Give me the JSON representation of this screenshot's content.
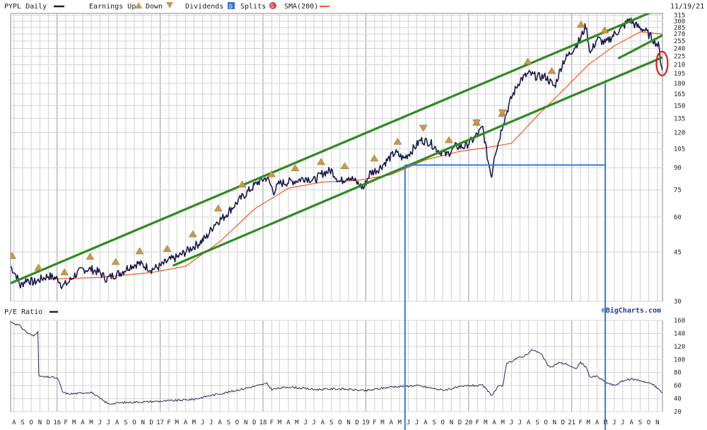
{
  "header": {
    "symbol_label": "PYPL Daily",
    "earnings_up_label": "Earnings Up",
    "earnings_down_label": "Down",
    "dividends_label": "Dividends",
    "dividend_icon": "D",
    "splits_label": "Splits",
    "split_icon": "S",
    "sma_label": "SMA(200)",
    "date": "11/19/21"
  },
  "colors": {
    "price": "#1b1b4d",
    "sma": "#f05a1e",
    "channel": "#2e8b22",
    "blue_line": "#2f7fd6",
    "earnings": "#c89a4c",
    "circle": "#e01a1a",
    "dividend": "#3a6fd8",
    "split": "#d94a4a"
  },
  "watermark": "©BigCharts.com",
  "pe_label": "P/E Ratio",
  "chart_data": [
    {
      "type": "line",
      "title": "PYPL Daily",
      "scale": "log",
      "grid": true,
      "x_range": [
        "2015-07-20",
        "2021-11-19"
      ],
      "ylim": [
        30,
        320
      ],
      "y_ticks": [
        30,
        45,
        60,
        75,
        90,
        105,
        120,
        135,
        150,
        165,
        180,
        195,
        210,
        225,
        240,
        255,
        270,
        285,
        300,
        315
      ],
      "x_tick_labels": [
        "A",
        "S",
        "O",
        "N",
        "D",
        "16",
        "F",
        "M",
        "A",
        "M",
        "J",
        "J",
        "A",
        "S",
        "O",
        "N",
        "D",
        "17",
        "F",
        "M",
        "A",
        "M",
        "J",
        "J",
        "A",
        "S",
        "O",
        "N",
        "D",
        "18",
        "F",
        "M",
        "A",
        "M",
        "J",
        "J",
        "A",
        "S",
        "O",
        "N",
        "D",
        "19",
        "F",
        "M",
        "A",
        "M",
        "J",
        "J",
        "A",
        "S",
        "O",
        "N",
        "D",
        "20",
        "F",
        "M",
        "A",
        "M",
        "J",
        "J",
        "A",
        "S",
        "O",
        "N",
        "D",
        "21",
        "F",
        "M",
        "A",
        "M",
        "J",
        "J",
        "A",
        "S",
        "O",
        "N"
      ],
      "series": [
        {
          "name": "PYPL Daily",
          "x": [
            "2015-07-20",
            "2015-08-10",
            "2015-08-24",
            "2015-09-15",
            "2015-10-10",
            "2015-11-05",
            "2015-12-01",
            "2016-01-05",
            "2016-01-20",
            "2016-02-10",
            "2016-03-01",
            "2016-04-01",
            "2016-05-01",
            "2016-06-01",
            "2016-06-24",
            "2016-07-15",
            "2016-08-15",
            "2016-09-15",
            "2016-10-15",
            "2016-11-10",
            "2016-12-01",
            "2017-01-01",
            "2017-02-01",
            "2017-03-01",
            "2017-04-01",
            "2017-04-28",
            "2017-05-15",
            "2017-06-15",
            "2017-07-15",
            "2017-08-15",
            "2017-09-15",
            "2017-10-15",
            "2017-11-15",
            "2017-12-15",
            "2018-01-15",
            "2018-02-08",
            "2018-03-01",
            "2018-04-01",
            "2018-05-01",
            "2018-06-01",
            "2018-07-01",
            "2018-08-01",
            "2018-09-01",
            "2018-10-01",
            "2018-11-01",
            "2018-12-24",
            "2019-01-15",
            "2019-02-15",
            "2019-03-15",
            "2019-04-15",
            "2019-05-15",
            "2019-06-15",
            "2019-07-15",
            "2019-08-15",
            "2019-09-15",
            "2019-10-15",
            "2019-11-15",
            "2019-12-15",
            "2020-01-15",
            "2020-02-20",
            "2020-03-10",
            "2020-03-23",
            "2020-04-01",
            "2020-04-15",
            "2020-05-01",
            "2020-06-01",
            "2020-07-01",
            "2020-08-01",
            "2020-09-01",
            "2020-10-01",
            "2020-11-01",
            "2020-12-01",
            "2021-01-01",
            "2021-02-01",
            "2021-02-20",
            "2021-03-08",
            "2021-04-01",
            "2021-05-01",
            "2021-06-01",
            "2021-07-01",
            "2021-07-24",
            "2021-08-15",
            "2021-09-15",
            "2021-10-15",
            "2021-11-05",
            "2021-11-12",
            "2021-11-19"
          ],
          "values": [
            40,
            37,
            34,
            36,
            35,
            36,
            37,
            36,
            34,
            35,
            37,
            39,
            39,
            38,
            36,
            37,
            38,
            40,
            41,
            40,
            39,
            40,
            42,
            43,
            45,
            47,
            48,
            51,
            57,
            60,
            65,
            70,
            75,
            80,
            83,
            74,
            79,
            80,
            81,
            83,
            81,
            86,
            88,
            80,
            84,
            76,
            86,
            89,
            95,
            102,
            97,
            104,
            113,
            111,
            104,
            100,
            107,
            107,
            113,
            125,
            95,
            84,
            100,
            110,
            129,
            160,
            185,
            195,
            190,
            190,
            175,
            215,
            235,
            260,
            290,
            230,
            260,
            250,
            270,
            285,
            305,
            290,
            280,
            260,
            245,
            220,
            200
          ]
        },
        {
          "name": "SMA(200)",
          "x": [
            "2015-12-01",
            "2016-06-01",
            "2016-12-01",
            "2017-04-01",
            "2017-08-01",
            "2017-12-01",
            "2018-04-01",
            "2018-08-01",
            "2018-12-01",
            "2019-04-01",
            "2019-08-01",
            "2019-12-01",
            "2020-03-01",
            "2020-06-01",
            "2020-09-01",
            "2020-12-01",
            "2021-03-01",
            "2021-06-01",
            "2021-09-01",
            "2021-11-19"
          ],
          "values": [
            36,
            36.5,
            38,
            40,
            49,
            64,
            76,
            80,
            81,
            85,
            96,
            103,
            106,
            110,
            138,
            170,
            210,
            245,
            275,
            270
          ]
        }
      ],
      "channel_lines": [
        {
          "x": [
            "2015-07-20",
            "2021-11-19"
          ],
          "y": [
            34.8,
            336
          ]
        },
        {
          "x": [
            "2017-02-15",
            "2021-11-19"
          ],
          "y": [
            40.2,
            223
          ]
        },
        {
          "x": [
            "2021-06-15",
            "2021-11-30"
          ],
          "y": [
            221,
            271
          ]
        }
      ],
      "earnings_up": [
        "2015-07-25",
        "2015-10-27",
        "2016-01-27",
        "2016-04-27",
        "2016-07-27",
        "2016-10-20",
        "2017-01-26",
        "2017-04-27",
        "2017-07-26",
        "2017-10-19",
        "2018-01-31",
        "2018-04-25",
        "2018-07-26",
        "2018-10-18",
        "2019-01-31",
        "2019-04-24",
        "2019-10-23",
        "2020-01-29",
        "2020-04-29",
        "2020-07-29",
        "2020-10-22",
        "2021-02-03",
        "2021-04-28"
      ],
      "earnings_down": [
        "2019-07-24",
        "2020-01-29",
        "2020-04-30",
        "2021-07-28"
      ],
      "annotations": [
        {
          "type": "horizontal_line",
          "y": 92,
          "x": [
            "2019-05-20",
            "2021-04-30"
          ]
        },
        {
          "type": "vertical_line",
          "x": "2019-05-20"
        },
        {
          "type": "vertical_line",
          "x": "2021-04-30"
        },
        {
          "type": "circle",
          "x": "2021-11-10",
          "y": 212
        }
      ]
    },
    {
      "type": "line",
      "title": "P/E Ratio",
      "grid": true,
      "ylim": [
        20,
        160
      ],
      "y_ticks": [
        20,
        40,
        60,
        80,
        100,
        120,
        140,
        160
      ],
      "series": [
        {
          "name": "P/E Ratio",
          "x": [
            "2015-07-20",
            "2015-08-20",
            "2015-09-20",
            "2015-10-10",
            "2015-10-25",
            "2015-10-28",
            "2015-11-15",
            "2015-12-15",
            "2016-01-05",
            "2016-01-20",
            "2016-02-10",
            "2016-03-15",
            "2016-05-01",
            "2016-06-01",
            "2016-07-01",
            "2016-09-01",
            "2016-11-01",
            "2017-01-01",
            "2017-03-01",
            "2017-05-01",
            "2017-07-01",
            "2017-09-01",
            "2017-11-01",
            "2018-01-15",
            "2018-02-01",
            "2018-04-01",
            "2018-07-01",
            "2018-10-01",
            "2019-01-01",
            "2019-04-01",
            "2019-07-01",
            "2019-10-01",
            "2020-01-01",
            "2020-02-20",
            "2020-03-23",
            "2020-04-15",
            "2020-05-01",
            "2020-05-15",
            "2020-06-15",
            "2020-07-15",
            "2020-08-15",
            "2020-09-15",
            "2020-10-15",
            "2020-11-15",
            "2020-12-15",
            "2021-01-15",
            "2021-02-01",
            "2021-02-20",
            "2021-03-08",
            "2021-04-01",
            "2021-05-01",
            "2021-06-01",
            "2021-07-01",
            "2021-08-01",
            "2021-09-01",
            "2021-10-15",
            "2021-11-19"
          ],
          "values": [
            158,
            152,
            140,
            136,
            144,
            75,
            73,
            73,
            70,
            50,
            47,
            48,
            50,
            40,
            32,
            34,
            35,
            36,
            37,
            39,
            45,
            50,
            56,
            63,
            54,
            58,
            54,
            55,
            52,
            58,
            60,
            53,
            60,
            60,
            45,
            58,
            60,
            93,
            101,
            105,
            115,
            108,
            87,
            95,
            93,
            85,
            96,
            88,
            73,
            74,
            65,
            60,
            67,
            70,
            68,
            62,
            49
          ]
        }
      ]
    }
  ]
}
